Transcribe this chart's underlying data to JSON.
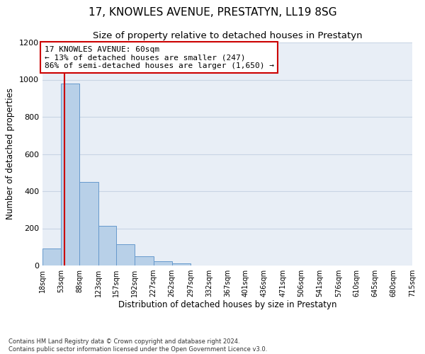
{
  "title": "17, KNOWLES AVENUE, PRESTATYN, LL19 8SG",
  "subtitle": "Size of property relative to detached houses in Prestatyn",
  "xlabel": "Distribution of detached houses by size in Prestatyn",
  "ylabel": "Number of detached properties",
  "bar_edges": [
    18,
    53,
    88,
    123,
    157,
    192,
    227,
    262,
    297,
    332,
    367,
    401,
    436,
    471,
    506,
    541,
    576,
    610,
    645,
    680,
    715
  ],
  "bar_heights": [
    90,
    980,
    450,
    215,
    115,
    50,
    22,
    12,
    0,
    0,
    0,
    0,
    0,
    0,
    0,
    0,
    0,
    0,
    0,
    0
  ],
  "bar_color": "#b8d0e8",
  "bar_edge_color": "#6699cc",
  "property_size": 60,
  "property_line_color": "#cc0000",
  "annotation_text": "17 KNOWLES AVENUE: 60sqm\n← 13% of detached houses are smaller (247)\n86% of semi-detached houses are larger (1,650) →",
  "annotation_box_color": "#cc0000",
  "ylim": [
    0,
    1200
  ],
  "yticks": [
    0,
    200,
    400,
    600,
    800,
    1000,
    1200
  ],
  "tick_labels": [
    "18sqm",
    "53sqm",
    "88sqm",
    "123sqm",
    "157sqm",
    "192sqm",
    "227sqm",
    "262sqm",
    "297sqm",
    "332sqm",
    "367sqm",
    "401sqm",
    "436sqm",
    "471sqm",
    "506sqm",
    "541sqm",
    "576sqm",
    "610sqm",
    "645sqm",
    "680sqm",
    "715sqm"
  ],
  "grid_color": "#c8d4e4",
  "background_color": "#e8eef6",
  "footer_text": "Contains HM Land Registry data © Crown copyright and database right 2024.\nContains public sector information licensed under the Open Government Licence v3.0.",
  "title_fontsize": 11,
  "subtitle_fontsize": 9.5,
  "axis_label_fontsize": 8.5,
  "tick_fontsize": 7,
  "annotation_fontsize": 8,
  "footer_fontsize": 6
}
